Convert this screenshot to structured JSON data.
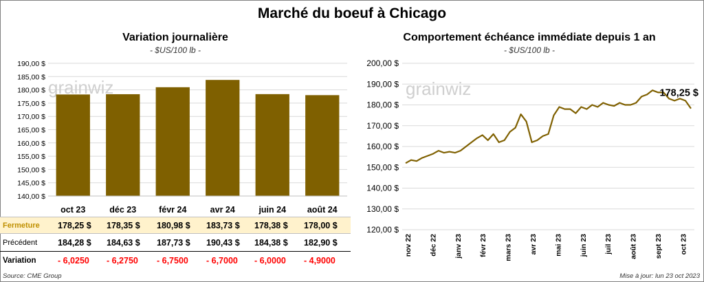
{
  "page": {
    "title": "Marché du boeuf à Chicago",
    "source": "Source: CME Group",
    "updated": "Mise à jour: lun 23 oct 2023",
    "watermark": "grainwiz"
  },
  "table": {
    "rows": [
      {
        "label": "Fermeture",
        "values": [
          "178,25  $",
          "178,35  $",
          "180,98  $",
          "183,73  $",
          "178,38  $",
          "178,00  $"
        ]
      },
      {
        "label": "Précédent",
        "values": [
          "184,28  $",
          "184,63  $",
          "187,73  $",
          "190,43  $",
          "184,38  $",
          "182,90  $"
        ]
      },
      {
        "label": "Variation",
        "values": [
          "- 6,0250",
          "- 6,2750",
          "- 6,7500",
          "- 6,7000",
          "- 6,0000",
          "- 4,9000"
        ]
      }
    ]
  },
  "colors": {
    "bar": "#7f6000",
    "line": "#7f6000",
    "negative": "#ff0000",
    "highlight_row": "#fff2cc",
    "label_fermeture": "#bf8f00"
  },
  "chart_data": [
    {
      "type": "bar",
      "title": "Variation  journalière",
      "subtitle": "- $US/100 lb -",
      "categories": [
        "oct 23",
        "déc 23",
        "févr 24",
        "avr 24",
        "juin 24",
        "août 24"
      ],
      "values": [
        178.25,
        178.35,
        180.98,
        183.73,
        178.38,
        178.0
      ],
      "ylim": [
        140,
        190
      ],
      "yticks": [
        140,
        145,
        150,
        155,
        160,
        165,
        170,
        175,
        180,
        185,
        190
      ],
      "ytick_labels": [
        "140,00 $",
        "145,00 $",
        "150,00 $",
        "155,00 $",
        "160,00 $",
        "165,00 $",
        "170,00 $",
        "175,00 $",
        "180,00 $",
        "185,00 $",
        "190,00 $"
      ],
      "grid": true
    },
    {
      "type": "line",
      "title": "Comportement  échéance immédiate depuis 1 an",
      "subtitle": "- $US/100 lb -",
      "ylim": [
        120,
        200
      ],
      "yticks": [
        120,
        130,
        140,
        150,
        160,
        170,
        180,
        190,
        200
      ],
      "ytick_labels": [
        "120,00 $",
        "130,00 $",
        "140,00 $",
        "150,00 $",
        "160,00 $",
        "170,00 $",
        "180,00 $",
        "190,00 $",
        "200,00 $"
      ],
      "xticks": [
        "nov 22",
        "déc 22",
        "janv 23",
        "févr 23",
        "mars 23",
        "avr 23",
        "mai 23",
        "juin 23",
        "juil 23",
        "août 23",
        "sept 23",
        "oct 23"
      ],
      "last_label": "178,25 $",
      "grid": true,
      "series": [
        {
          "x": [
            "2022-10-24",
            "2022-10-31",
            "2022-11-07",
            "2022-11-14",
            "2022-11-21",
            "2022-11-28",
            "2022-12-05",
            "2022-12-12",
            "2022-12-19",
            "2022-12-26",
            "2023-01-02",
            "2023-01-09",
            "2023-01-16",
            "2023-01-23",
            "2023-01-30",
            "2023-02-06",
            "2023-02-13",
            "2023-02-20",
            "2023-02-27",
            "2023-03-06",
            "2023-03-13",
            "2023-03-20",
            "2023-03-27",
            "2023-04-03",
            "2023-04-10",
            "2023-04-17",
            "2023-04-24",
            "2023-05-01",
            "2023-05-08",
            "2023-05-15",
            "2023-05-22",
            "2023-05-29",
            "2023-06-05",
            "2023-06-12",
            "2023-06-19",
            "2023-06-26",
            "2023-07-03",
            "2023-07-10",
            "2023-07-17",
            "2023-07-24",
            "2023-07-31",
            "2023-08-07",
            "2023-08-14",
            "2023-08-21",
            "2023-08-28",
            "2023-09-04",
            "2023-09-11",
            "2023-09-18",
            "2023-09-25",
            "2023-10-02",
            "2023-10-09",
            "2023-10-16",
            "2023-10-23"
          ],
          "values": [
            152,
            153.5,
            153,
            154.5,
            155.5,
            156.5,
            158,
            157,
            157.5,
            157,
            158,
            160,
            162,
            164,
            165.5,
            163,
            166,
            162,
            163,
            167,
            169,
            175.5,
            172,
            162,
            163,
            165,
            166,
            175,
            179,
            178,
            178,
            176,
            179,
            178,
            180,
            179,
            181,
            180,
            179.5,
            181,
            180,
            180,
            181,
            184,
            185,
            187,
            186,
            186,
            183,
            182,
            183,
            182,
            178.25
          ]
        }
      ]
    }
  ]
}
